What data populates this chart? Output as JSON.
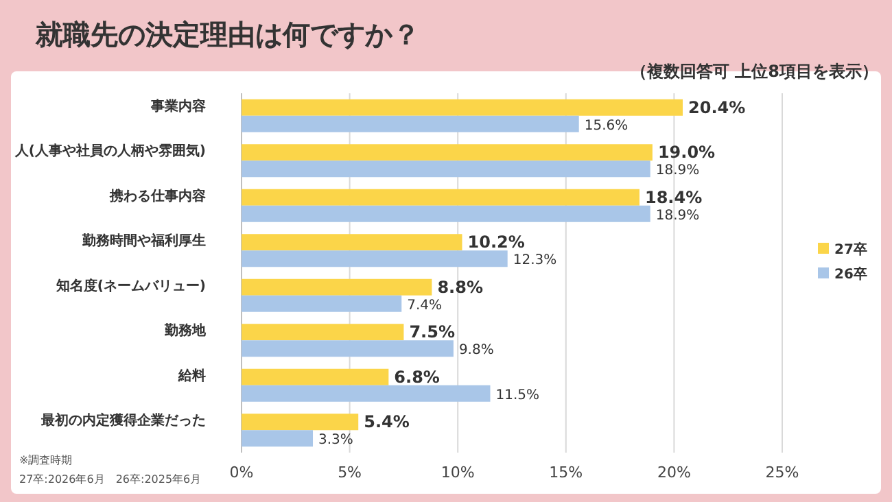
{
  "chart_data": {
    "type": "bar",
    "orientation": "horizontal",
    "title": "就職先の決定理由は何ですか？",
    "subtitle": "（複数回答可 上位8項目を表示）",
    "categories": [
      "事業内容",
      "人(人事や社員の人柄や雰囲気)",
      "携わる仕事内容",
      "勤務時間や福利厚生",
      "知名度(ネームバリュー)",
      "勤務地",
      "給料",
      "最初の内定獲得企業だった"
    ],
    "series": [
      {
        "name": "27卒",
        "color": "#fbd549",
        "values": [
          20.4,
          19.0,
          18.4,
          10.2,
          8.8,
          7.5,
          6.8,
          5.4
        ],
        "value_labels": [
          "20.4%",
          "19.0%",
          "18.4%",
          "10.2%",
          "8.8%",
          "7.5%",
          "6.8%",
          "5.4%"
        ]
      },
      {
        "name": "26卒",
        "color": "#a9c6e8",
        "values": [
          15.6,
          18.9,
          18.9,
          12.3,
          7.4,
          9.8,
          11.5,
          3.3
        ],
        "value_labels": [
          "15.6%",
          "18.9%",
          "18.9%",
          "12.3%",
          "7.4%",
          "9.8%",
          "11.5%",
          "3.3%"
        ]
      }
    ],
    "xlim": [
      0,
      25
    ],
    "xticks": [
      {
        "value": 0,
        "label": "0%"
      },
      {
        "value": 5,
        "label": "5%"
      },
      {
        "value": 10,
        "label": "10%"
      },
      {
        "value": 15,
        "label": "15%"
      },
      {
        "value": 20,
        "label": "20%"
      },
      {
        "value": 25,
        "label": "25%"
      }
    ],
    "grid": "x",
    "legend": "right",
    "annotations": [
      "※調査時期",
      "27卒:2026年6月　26卒:2025年6月"
    ]
  }
}
